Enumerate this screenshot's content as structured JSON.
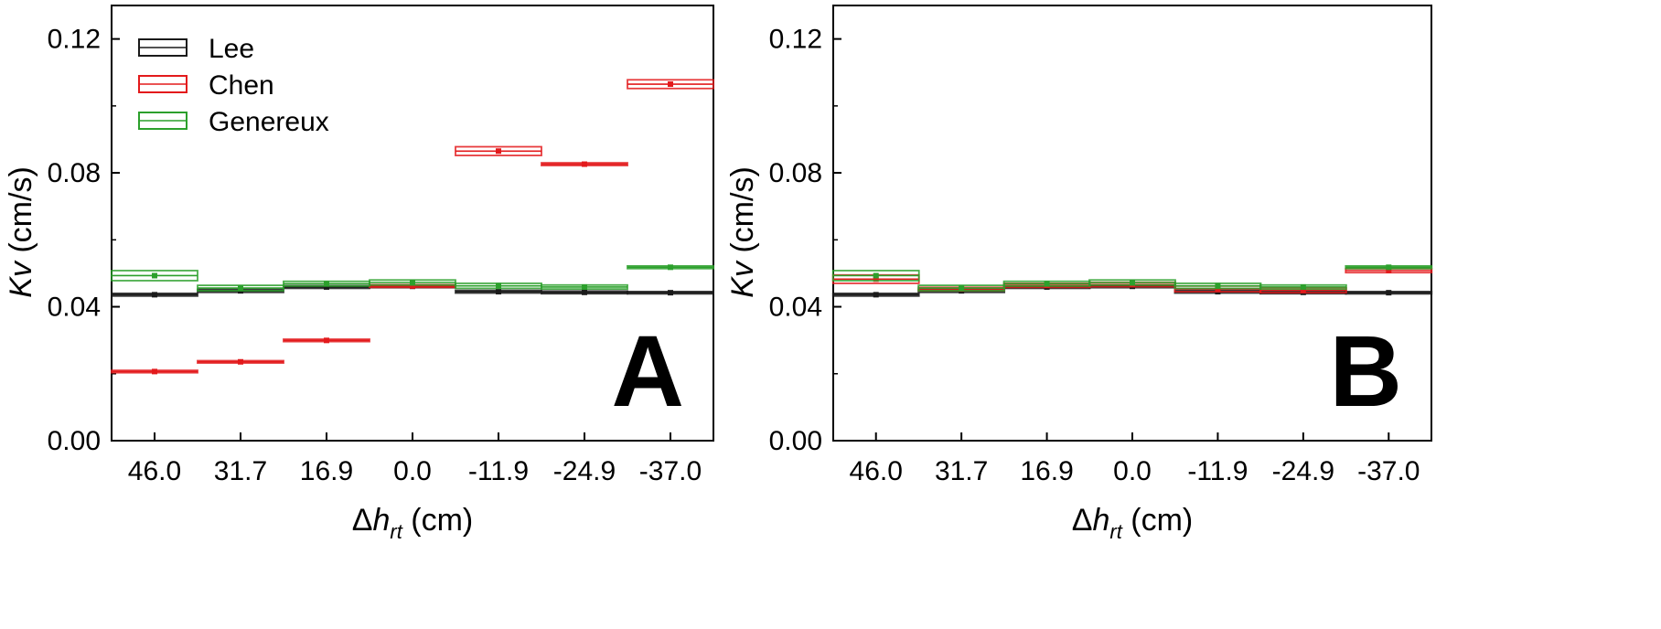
{
  "chart_data": [
    {
      "type": "box",
      "panel_label": "A",
      "xlabel": {
        "prefix": "Δ",
        "var": "h",
        "sub": "rt",
        "unit": " (cm)"
      },
      "ylabel": {
        "var": "Kv",
        "unit": " (cm/s)"
      },
      "categories": [
        "46.0",
        "31.7",
        "16.9",
        "0.0",
        "-11.9",
        "-24.9",
        "-37.0"
      ],
      "ylim": [
        0.0,
        0.13
      ],
      "yticks": [
        "0.00",
        "0.04",
        "0.08",
        "0.12"
      ],
      "ytick_values": [
        0.0,
        0.04,
        0.08,
        0.12
      ],
      "legend": {
        "position": "top-left",
        "entries": [
          "Lee",
          "Chen",
          "Genereux"
        ]
      },
      "series": [
        {
          "name": "Lee",
          "color": "#1a1a1a",
          "boxes": [
            [
              0.0432,
              0.044
            ],
            [
              0.0443,
              0.0452
            ],
            [
              0.0455,
              0.0463
            ],
            [
              0.0457,
              0.0465
            ],
            [
              0.0441,
              0.0449
            ],
            [
              0.0439,
              0.0447
            ],
            [
              0.0439,
              0.0445
            ]
          ]
        },
        {
          "name": "Chen",
          "color": "#e31a1c",
          "boxes": [
            [
              0.0203,
              0.021
            ],
            [
              0.0233,
              0.0238
            ],
            [
              0.0296,
              0.0303
            ],
            [
              0.0458,
              0.0466
            ],
            [
              0.0852,
              0.0878
            ],
            [
              0.0822,
              0.083
            ],
            [
              0.1052,
              0.1078
            ]
          ]
        },
        {
          "name": "Genereux",
          "color": "#2ca02c",
          "boxes": [
            [
              0.0478,
              0.0508
            ],
            [
              0.0448,
              0.0464
            ],
            [
              0.0462,
              0.0476
            ],
            [
              0.0465,
              0.048
            ],
            [
              0.0455,
              0.047
            ],
            [
              0.0453,
              0.0465
            ],
            [
              0.0514,
              0.0522
            ]
          ]
        }
      ]
    },
    {
      "type": "box",
      "panel_label": "B",
      "xlabel": {
        "prefix": "Δ",
        "var": "h",
        "sub": "rt",
        "unit": " (cm)"
      },
      "ylabel": {
        "var": "Kv",
        "unit": " (cm/s)"
      },
      "categories": [
        "46.0",
        "31.7",
        "16.9",
        "0.0",
        "-11.9",
        "-24.9",
        "-37.0"
      ],
      "ylim": [
        0.0,
        0.13
      ],
      "yticks": [
        "0.00",
        "0.04",
        "0.08",
        "0.12"
      ],
      "ytick_values": [
        0.0,
        0.04,
        0.08,
        0.12
      ],
      "series": [
        {
          "name": "Lee",
          "color": "#1a1a1a",
          "boxes": [
            [
              0.0432,
              0.044
            ],
            [
              0.0443,
              0.0452
            ],
            [
              0.0455,
              0.0463
            ],
            [
              0.0457,
              0.0465
            ],
            [
              0.0441,
              0.0449
            ],
            [
              0.0439,
              0.0447
            ],
            [
              0.0439,
              0.0445
            ]
          ]
        },
        {
          "name": "Chen",
          "color": "#e31a1c",
          "boxes": [
            [
              0.047,
              0.0495
            ],
            [
              0.0448,
              0.0458
            ],
            [
              0.0458,
              0.047
            ],
            [
              0.046,
              0.0473
            ],
            [
              0.0445,
              0.0462
            ],
            [
              0.0442,
              0.0457
            ],
            [
              0.0502,
              0.0514
            ]
          ]
        },
        {
          "name": "Genereux",
          "color": "#2ca02c",
          "boxes": [
            [
              0.0478,
              0.0508
            ],
            [
              0.0448,
              0.0464
            ],
            [
              0.0462,
              0.0476
            ],
            [
              0.0465,
              0.048
            ],
            [
              0.0455,
              0.047
            ],
            [
              0.0453,
              0.0465
            ],
            [
              0.0514,
              0.0522
            ]
          ]
        }
      ]
    }
  ]
}
